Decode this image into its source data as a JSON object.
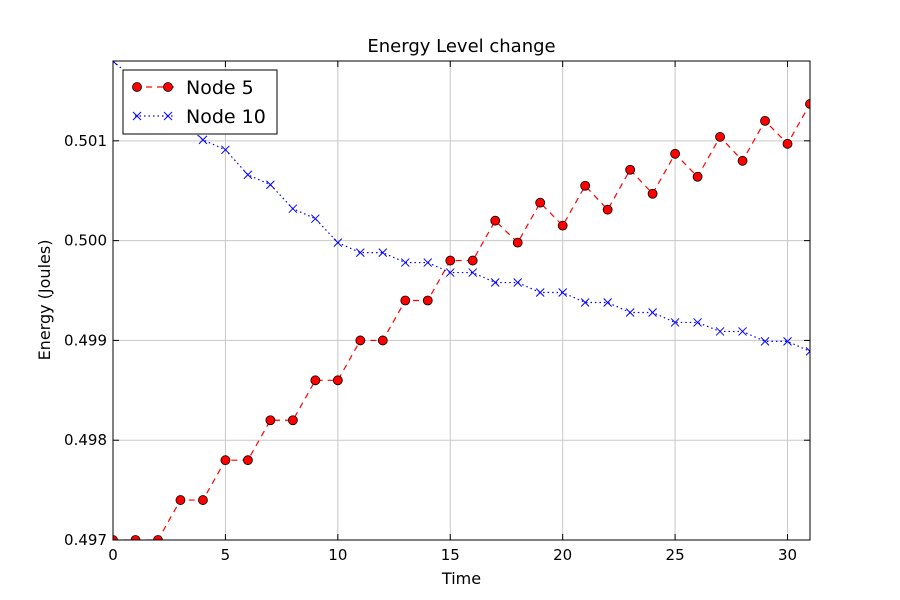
{
  "chart_data": {
    "type": "line",
    "title": "Energy Level change",
    "xlabel": "Time",
    "ylabel": "Energy (Joules)",
    "xlim": [
      0,
      31
    ],
    "ylim": [
      0.497,
      0.5018
    ],
    "xticks": [
      0,
      5,
      10,
      15,
      20,
      25,
      30
    ],
    "xtick_labels": [
      "0",
      "5",
      "10",
      "15",
      "20",
      "25",
      "30"
    ],
    "yticks": [
      0.497,
      0.498,
      0.499,
      0.5,
      0.501
    ],
    "ytick_labels": [
      "0.497",
      "0.498",
      "0.499",
      "0.500",
      "0.501"
    ],
    "grid": true,
    "legend_position": "top-left",
    "series": [
      {
        "name": "Node 5",
        "color": "#ff0000",
        "line_style": "dashed",
        "marker": "circle",
        "x": [
          0,
          1,
          2,
          3,
          4,
          5,
          6,
          7,
          8,
          9,
          10,
          11,
          12,
          13,
          14,
          15,
          16,
          17,
          18,
          19,
          20,
          21,
          22,
          23,
          24,
          25,
          26,
          27,
          28,
          29,
          30,
          31
        ],
        "values": [
          0.497,
          0.497,
          0.497,
          0.4974,
          0.4974,
          0.4978,
          0.4978,
          0.4982,
          0.4982,
          0.4986,
          0.4986,
          0.499,
          0.499,
          0.4994,
          0.4994,
          0.4998,
          0.4998,
          0.5002,
          0.49998,
          0.50038,
          0.50015,
          0.50055,
          0.50031,
          0.50071,
          0.50047,
          0.50087,
          0.50064,
          0.50104,
          0.5008,
          0.5012,
          0.50097,
          0.50137
        ]
      },
      {
        "name": "Node 10",
        "color": "#0000ff",
        "line_style": "dotted",
        "marker": "x",
        "x": [
          0,
          4,
          5,
          6,
          7,
          8,
          9,
          10,
          11,
          12,
          13,
          14,
          15,
          16,
          17,
          18,
          19,
          20,
          21,
          22,
          23,
          24,
          25,
          26,
          27,
          28,
          29,
          30,
          31
        ],
        "values": [
          0.5018,
          0.50101,
          0.50091,
          0.50066,
          0.50056,
          0.50032,
          0.50022,
          0.49998,
          0.49988,
          0.49988,
          0.49978,
          0.49978,
          0.49968,
          0.49968,
          0.49958,
          0.49958,
          0.49948,
          0.49948,
          0.49938,
          0.49938,
          0.49928,
          0.49928,
          0.49918,
          0.49918,
          0.49909,
          0.49909,
          0.49899,
          0.49899,
          0.49889
        ]
      }
    ]
  }
}
